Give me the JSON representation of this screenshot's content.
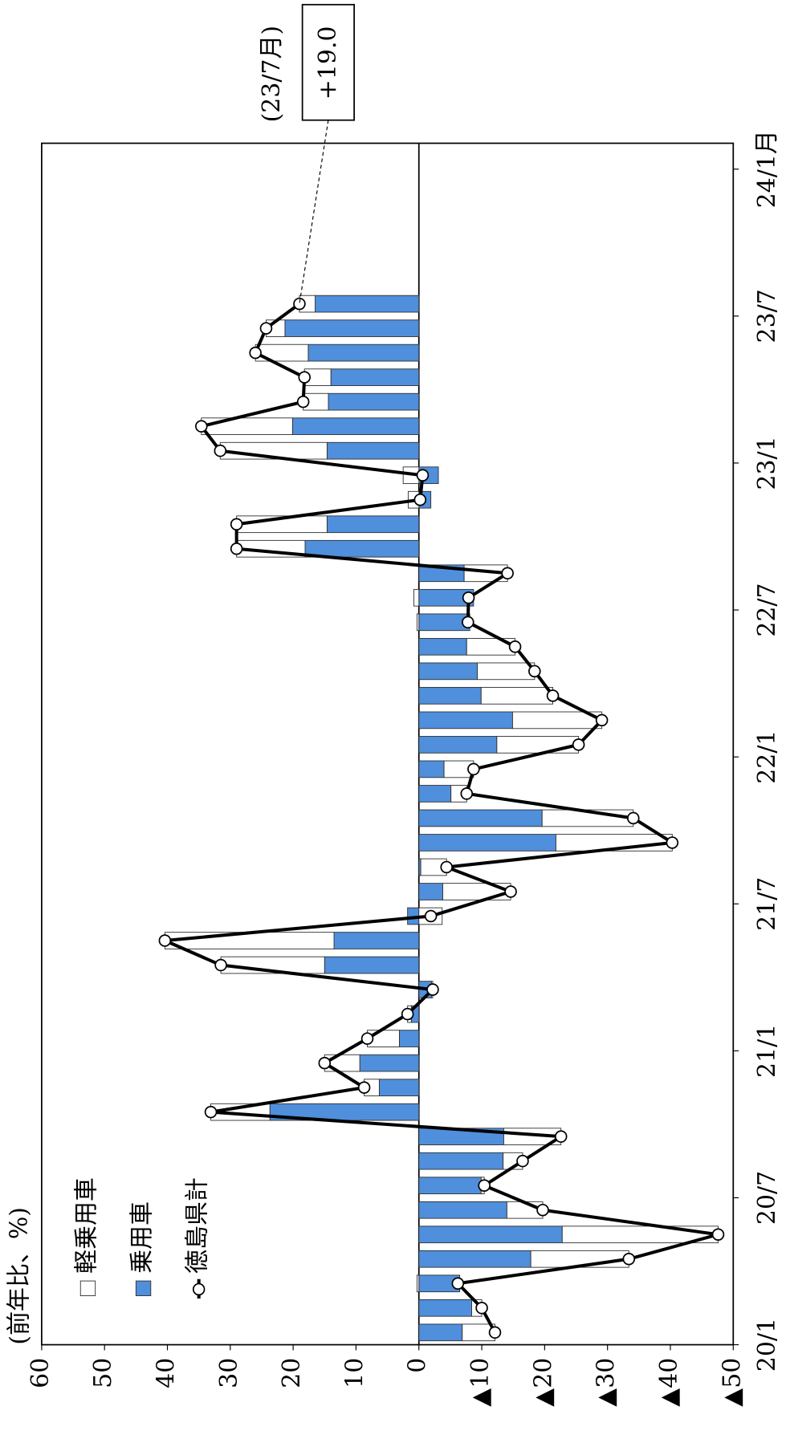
{
  "chart_data": {
    "type": "bar",
    "unit_label": "(前年比、%)",
    "xlim": [
      0,
      48
    ],
    "xticks": [
      {
        "value": 0,
        "label": "20/1"
      },
      {
        "value": 6,
        "label": "20/7"
      },
      {
        "value": 12,
        "label": "21/1"
      },
      {
        "value": 18,
        "label": "21/7"
      },
      {
        "value": 24,
        "label": "22/1"
      },
      {
        "value": 30,
        "label": "22/7"
      },
      {
        "value": 36,
        "label": "23/1"
      },
      {
        "value": 42,
        "label": "23/7"
      },
      {
        "value": 48,
        "label": "24/1月"
      }
    ],
    "ylim": [
      -50,
      60
    ],
    "yticks": [
      60,
      50,
      40,
      30,
      20,
      10,
      0,
      {
        "value": -10,
        "label": "▲10"
      },
      {
        "value": -20,
        "label": "▲20"
      },
      {
        "value": -30,
        "label": "▲30"
      },
      {
        "value": -40,
        "label": "▲40"
      },
      {
        "value": -50,
        "label": "▲50"
      }
    ],
    "stacked": true,
    "series": [
      {
        "name": "軽乗用車",
        "type": "bar",
        "color": "#ffffff",
        "values": [
          -5.2,
          -1.6,
          0.3,
          -15.6,
          -24.8,
          -5.7,
          -0.5,
          -3.1,
          -9.1,
          9.4,
          2.4,
          5.6,
          5.1,
          0.6,
          -0.2,
          16.5,
          26.9,
          -3.7,
          -10.8,
          -4.1,
          -18.5,
          -14.5,
          -2.5,
          -4.7,
          -13.0,
          -14.2,
          -11.4,
          -9.1,
          -7.7,
          0.3,
          0.8,
          -6.9,
          10.9,
          14.4,
          1.7,
          2.5,
          17.0,
          14.5,
          4.0,
          4.2,
          8.4,
          3.0,
          2.5
        ]
      },
      {
        "name": "乗用車",
        "type": "bar",
        "color": "#4f8fdc",
        "values": [
          -6.9,
          -8.4,
          -6.5,
          -17.8,
          -22.8,
          -14.0,
          -9.9,
          -13.4,
          -13.5,
          23.7,
          6.3,
          9.4,
          3.1,
          1.2,
          -2.0,
          15.0,
          13.5,
          1.8,
          -3.8,
          -0.3,
          -21.8,
          -19.6,
          -5.1,
          -4.0,
          -12.4,
          -14.9,
          -9.9,
          -9.3,
          -7.6,
          -8.1,
          -8.7,
          -7.2,
          18.1,
          14.6,
          -1.9,
          -3.1,
          14.6,
          20.1,
          14.4,
          14.0,
          17.6,
          21.3,
          16.5
        ]
      },
      {
        "name": "徳島県計",
        "type": "line",
        "color": "#000000",
        "values": [
          -12.1,
          -10.0,
          -6.2,
          -33.4,
          -47.6,
          -19.7,
          -10.4,
          -16.5,
          -22.6,
          33.1,
          8.7,
          15.0,
          8.2,
          1.8,
          -2.2,
          31.5,
          40.4,
          -1.9,
          -14.6,
          -4.4,
          -40.3,
          -34.1,
          -7.6,
          -8.7,
          -25.4,
          -29.1,
          -21.3,
          -18.4,
          -15.3,
          -7.8,
          -7.9,
          -14.1,
          29.0,
          29.0,
          -0.2,
          -0.6,
          31.6,
          34.6,
          18.4,
          18.2,
          26.0,
          24.3,
          19.0
        ]
      }
    ],
    "annotations": [
      {
        "text": "(23/7月)"
      },
      {
        "text": "+19.0"
      }
    ]
  }
}
